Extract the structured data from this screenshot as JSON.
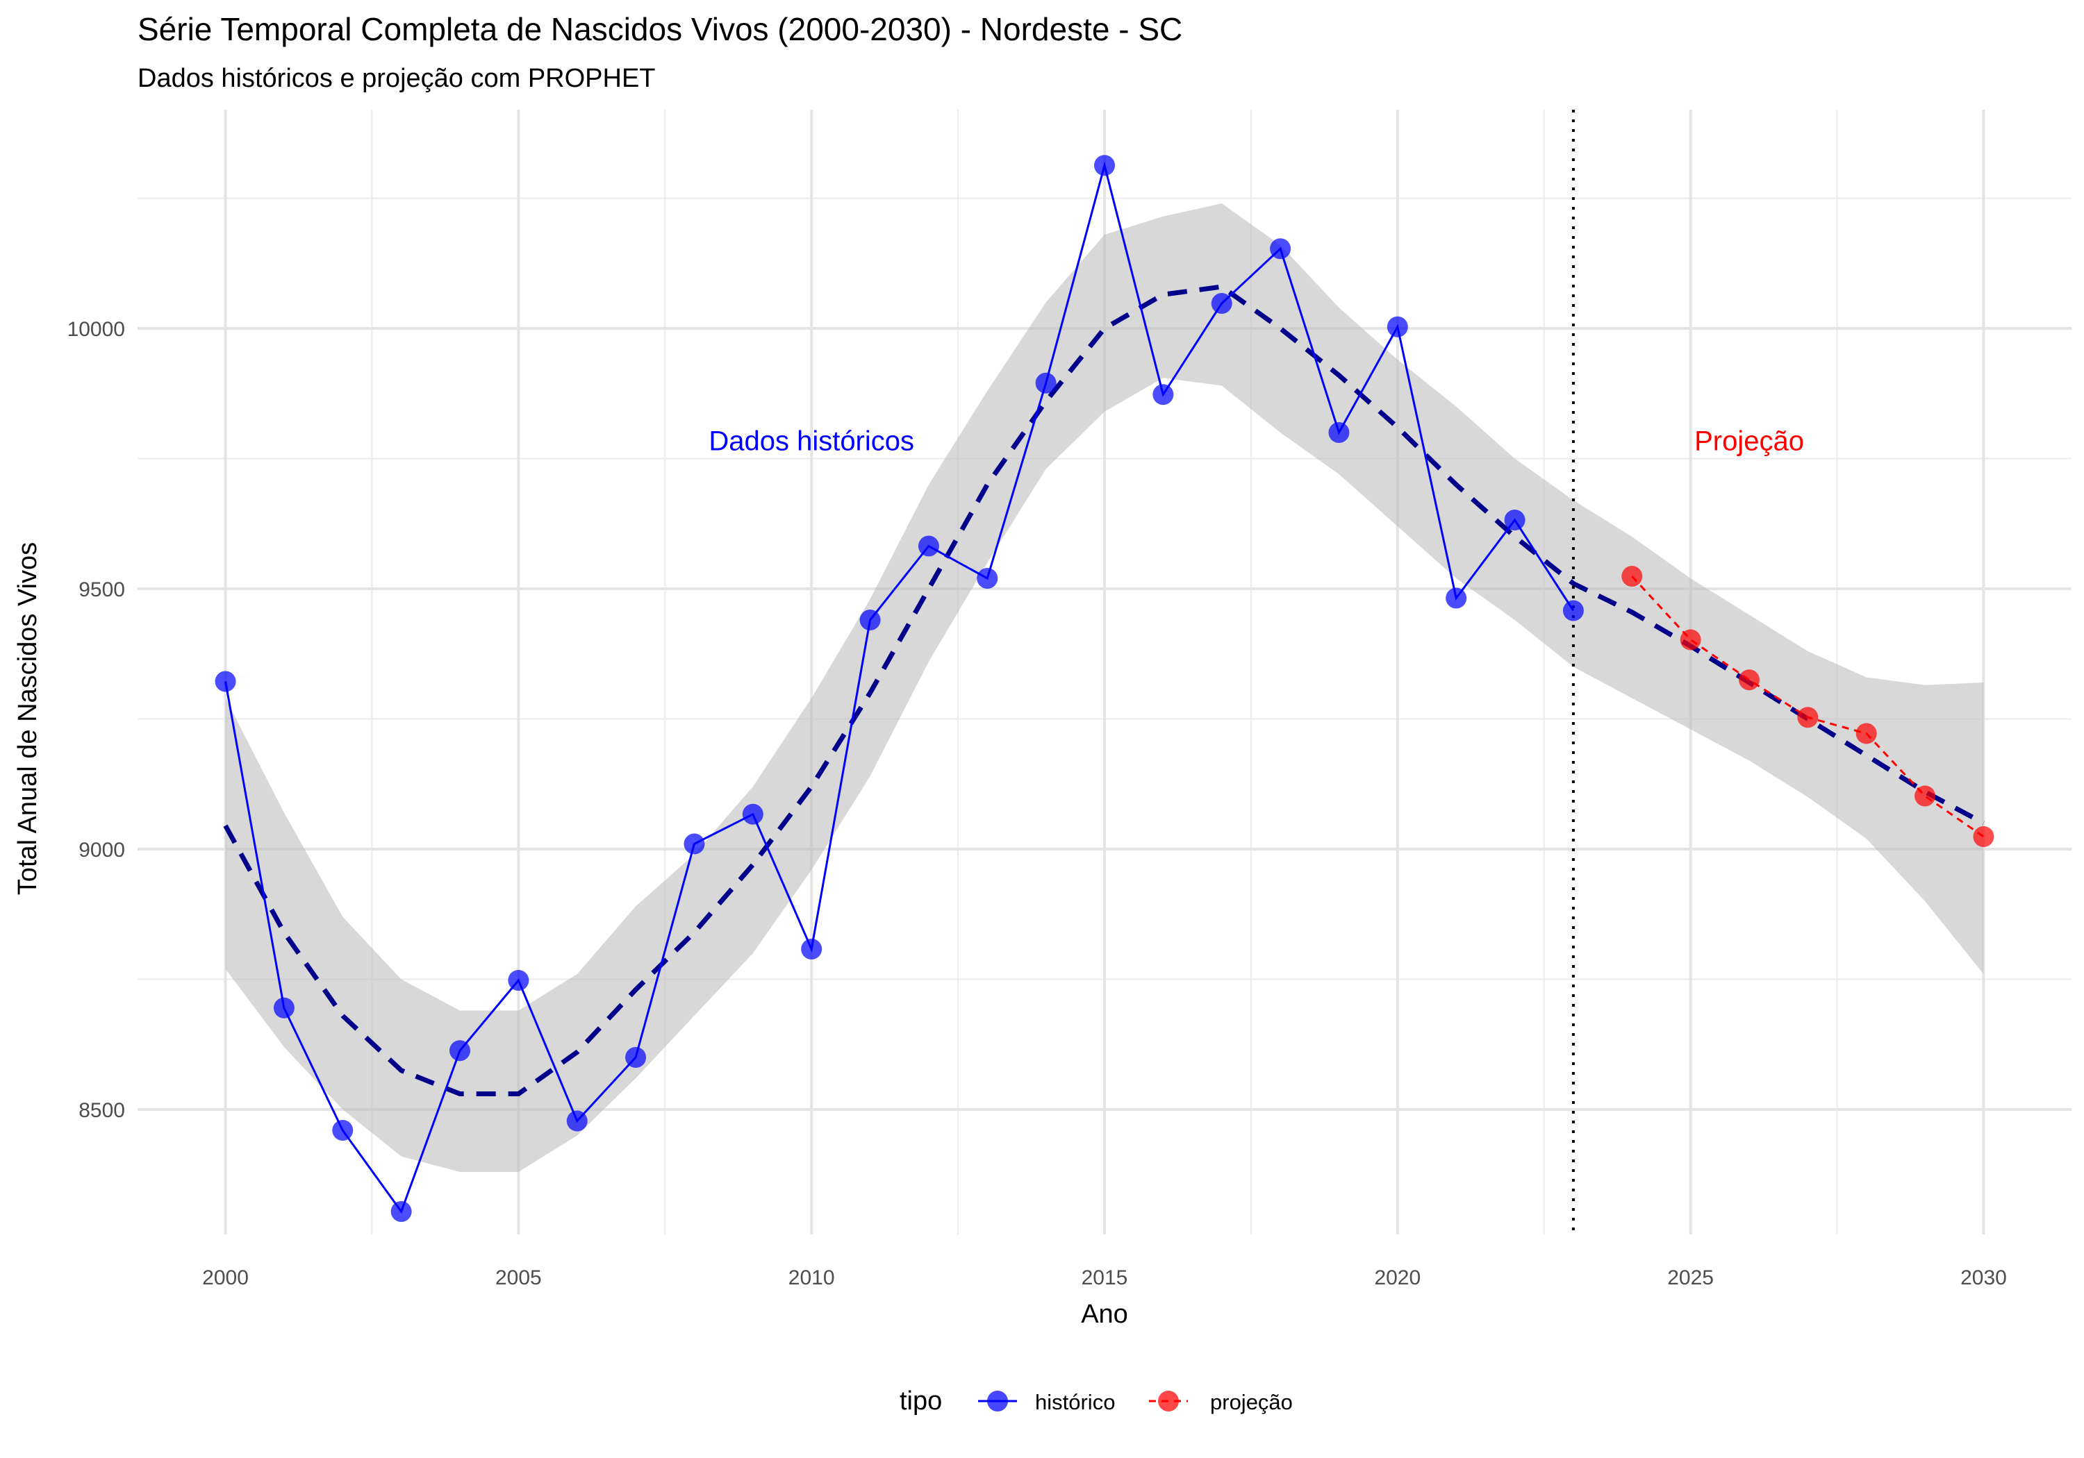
{
  "chart_data": {
    "type": "line",
    "title": "Série Temporal Completa de Nascidos Vivos (2000-2030) -  Nordeste - SC",
    "subtitle": "Dados históricos e projeção com PROPHET",
    "xlabel": "Ano",
    "ylabel": "Total Anual de Nascidos Vivos",
    "xlim": [
      1998.5,
      2031.5
    ],
    "ylim": [
      8260,
      10420
    ],
    "x_ticks": [
      2000,
      2005,
      2010,
      2015,
      2020,
      2025,
      2030
    ],
    "y_ticks": [
      8500,
      9000,
      9500,
      10000
    ],
    "grid": true,
    "legend": {
      "position": "bottom",
      "title": "tipo",
      "labels": [
        "histórico",
        "projeção"
      ]
    },
    "colors": {
      "historico": "#0000ff",
      "projecao": "#ff0000",
      "trend": "#00008b",
      "band": "#bebebe"
    },
    "series": [
      {
        "name": "histórico",
        "x": [
          2000,
          2001,
          2002,
          2003,
          2004,
          2005,
          2006,
          2007,
          2008,
          2009,
          2010,
          2011,
          2012,
          2013,
          2014,
          2015,
          2016,
          2017,
          2018,
          2019,
          2020,
          2021,
          2022,
          2023
        ],
        "values": [
          9322,
          8695,
          8460,
          8304,
          8613,
          8748,
          8478,
          8600,
          9010,
          9067,
          8808,
          9440,
          9582,
          9520,
          9895,
          10313,
          9873,
          10048,
          10153,
          9800,
          10003,
          9482,
          9632,
          9458
        ]
      },
      {
        "name": "projeção",
        "x": [
          2024,
          2025,
          2026,
          2027,
          2028,
          2029,
          2030
        ],
        "values": [
          9524,
          9402,
          9325,
          9253,
          9222,
          9102,
          9024
        ]
      }
    ],
    "trend": {
      "x": [
        2000,
        2001,
        2002,
        2003,
        2004,
        2005,
        2006,
        2007,
        2008,
        2009,
        2010,
        2011,
        2012,
        2013,
        2014,
        2015,
        2016,
        2017,
        2018,
        2019,
        2020,
        2021,
        2022,
        2023,
        2024,
        2025,
        2026,
        2027,
        2028,
        2029,
        2030
      ],
      "values": [
        9045,
        8840,
        8680,
        8575,
        8530,
        8530,
        8610,
        8730,
        8840,
        8970,
        9120,
        9300,
        9500,
        9700,
        9860,
        10000,
        10065,
        10080,
        10000,
        9910,
        9810,
        9700,
        9600,
        9510,
        9455,
        9390,
        9320,
        9250,
        9180,
        9110,
        9050
      ]
    },
    "band": {
      "x": [
        2000,
        2001,
        2002,
        2003,
        2004,
        2005,
        2006,
        2007,
        2008,
        2009,
        2010,
        2011,
        2012,
        2013,
        2014,
        2015,
        2016,
        2017,
        2018,
        2019,
        2020,
        2021,
        2022,
        2023,
        2024,
        2025,
        2026,
        2027,
        2028,
        2029,
        2030
      ],
      "lower": [
        8770,
        8620,
        8500,
        8410,
        8380,
        8380,
        8450,
        8560,
        8680,
        8800,
        8960,
        9140,
        9360,
        9550,
        9730,
        9840,
        9905,
        9890,
        9800,
        9720,
        9620,
        9520,
        9440,
        9350,
        9290,
        9230,
        9170,
        9100,
        9020,
        8900,
        8760
      ],
      "upper": [
        9290,
        9070,
        8870,
        8750,
        8690,
        8690,
        8760,
        8890,
        8990,
        9120,
        9290,
        9480,
        9700,
        9880,
        10050,
        10180,
        10215,
        10240,
        10160,
        10040,
        9940,
        9850,
        9750,
        9670,
        9600,
        9520,
        9450,
        9380,
        9330,
        9315,
        9320
      ]
    },
    "cutoff_x": 2023,
    "annotations": [
      {
        "text": "Dados históricos",
        "x": 2010,
        "y": 9785,
        "color": "#0000ff"
      },
      {
        "text": "Projeção",
        "x": 2026,
        "y": 9785,
        "color": "#ff0000"
      }
    ]
  }
}
